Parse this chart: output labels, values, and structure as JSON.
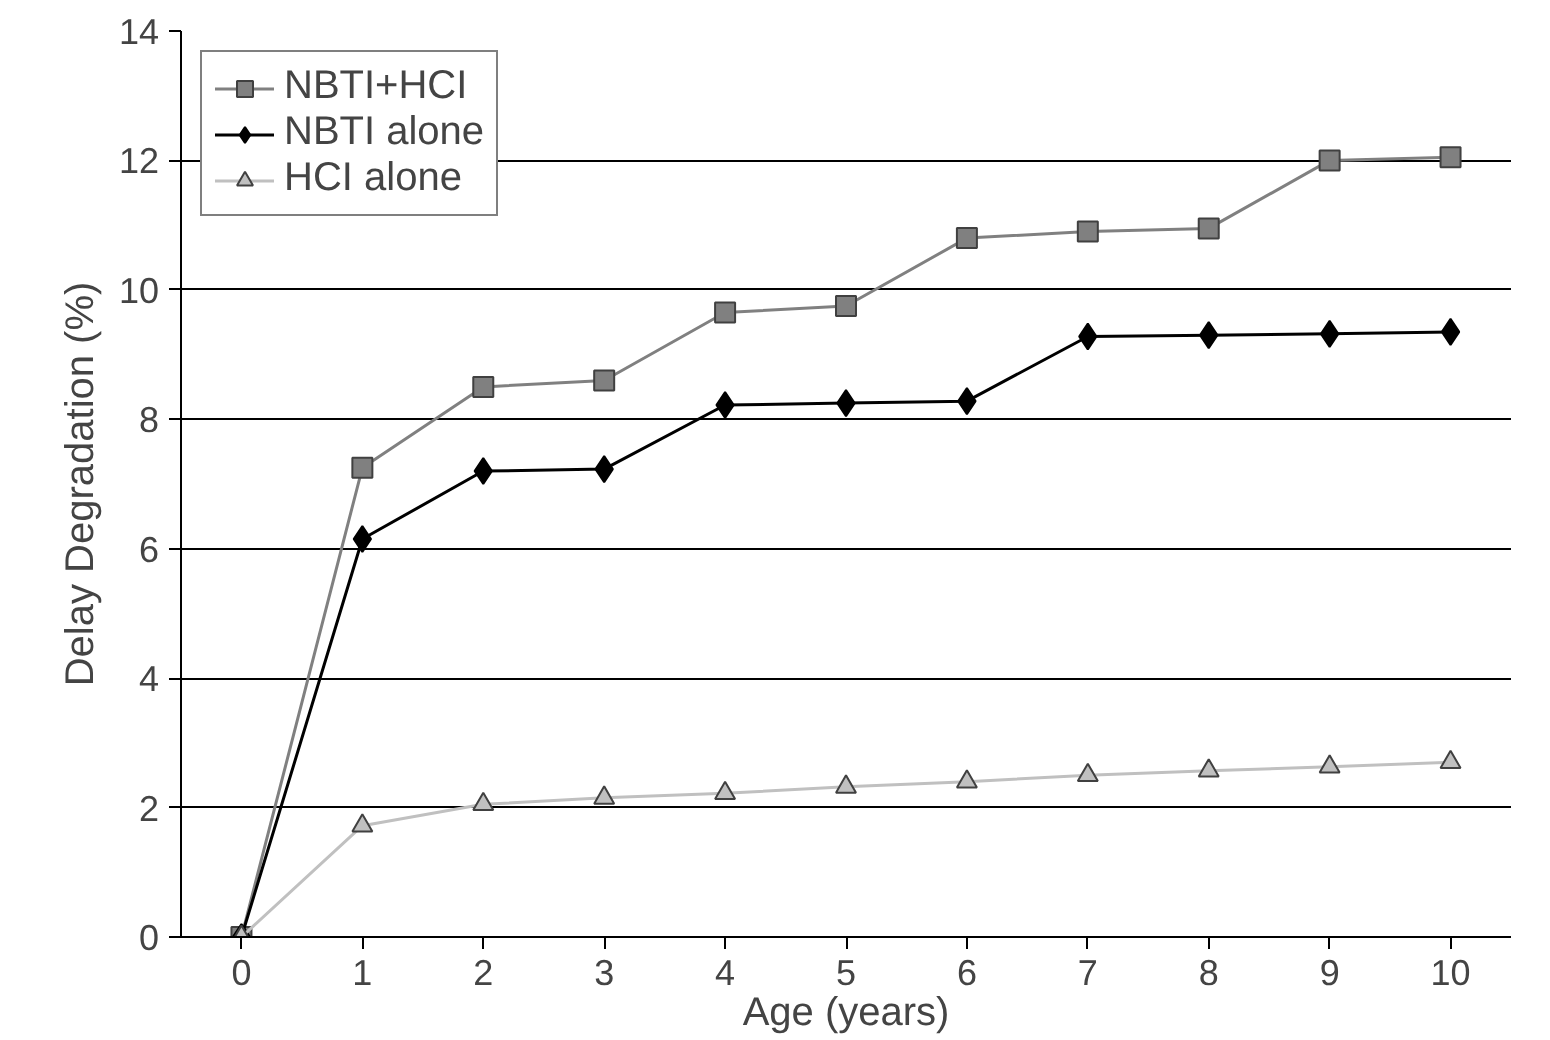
{
  "chart_data": {
    "type": "line",
    "xlabel": "Age (years)",
    "ylabel": "Delay Degradation (%)",
    "categories": [
      "0",
      "1",
      "2",
      "3",
      "4",
      "5",
      "6",
      "7",
      "8",
      "9",
      "10"
    ],
    "series": [
      {
        "name": "NBTI+HCI",
        "color": "#808080",
        "marker": "square",
        "values": [
          0,
          7.25,
          8.5,
          8.6,
          9.65,
          9.75,
          10.8,
          10.9,
          10.95,
          12.0,
          12.05
        ]
      },
      {
        "name": "NBTI alone",
        "color": "#000000",
        "marker": "diamond",
        "values": [
          0,
          6.15,
          7.2,
          7.23,
          8.22,
          8.25,
          8.28,
          9.28,
          9.3,
          9.32,
          9.35
        ]
      },
      {
        "name": "HCI alone",
        "color": "#c0c0c0",
        "marker": "triangle",
        "values": [
          0,
          1.72,
          2.05,
          2.15,
          2.22,
          2.32,
          2.4,
          2.5,
          2.57,
          2.63,
          2.7
        ]
      }
    ],
    "ylim": [
      0,
      14
    ],
    "yticks": [
      0,
      2,
      4,
      6,
      8,
      10,
      12,
      14
    ],
    "grid": "y",
    "legend": "top left",
    "line_style": "solid"
  }
}
